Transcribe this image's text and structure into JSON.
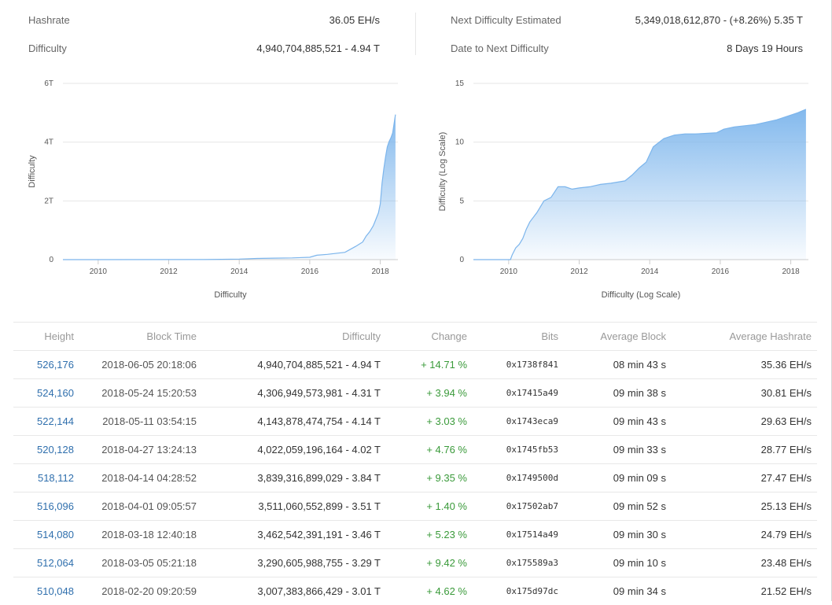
{
  "stats": {
    "hashrate_label": "Hashrate",
    "hashrate_value": "36.05 EH/s",
    "difficulty_label": "Difficulty",
    "difficulty_value": "4,940,704,885,521 - 4.94 T",
    "next_label": "Next Difficulty Estimated",
    "next_value": "5,349,018,612,870 - (+8.26%) 5.35 T",
    "date_label": "Date to Next Difficulty",
    "date_value": "8 Days 19 Hours"
  },
  "chart_data": [
    {
      "type": "area",
      "title": "",
      "xlabel": "Difficulty",
      "ylabel": "Difficulty",
      "xlim": [
        2009.0,
        2018.5
      ],
      "ylim": [
        0,
        6
      ],
      "x_ticks": [
        2010,
        2012,
        2014,
        2016,
        2018
      ],
      "y_ticks": [
        0,
        2,
        4,
        6
      ],
      "y_tick_labels": [
        "0",
        "2T",
        "4T",
        "6T"
      ],
      "grid": true,
      "color": "#7cb5ec",
      "x": [
        2009.0,
        2013.0,
        2013.5,
        2014.0,
        2014.5,
        2015.0,
        2015.5,
        2016.0,
        2016.2,
        2016.5,
        2017.0,
        2017.3,
        2017.5,
        2017.6,
        2017.7,
        2017.8,
        2017.85,
        2017.9,
        2017.95,
        2018.0,
        2018.05,
        2018.1,
        2018.15,
        2018.2,
        2018.25,
        2018.3,
        2018.35,
        2018.43
      ],
      "y": [
        0,
        0.003,
        0.01,
        0.02,
        0.04,
        0.05,
        0.06,
        0.08,
        0.15,
        0.18,
        0.25,
        0.45,
        0.6,
        0.8,
        0.95,
        1.15,
        1.3,
        1.45,
        1.6,
        1.9,
        2.6,
        3.1,
        3.5,
        3.84,
        4.02,
        4.14,
        4.31,
        4.94
      ]
    },
    {
      "type": "area",
      "title": "",
      "xlabel": "Difficulty (Log Scale)",
      "ylabel": "Difficulty (Log Scale)",
      "xlim": [
        2009.0,
        2018.5
      ],
      "ylim": [
        0,
        15
      ],
      "x_ticks": [
        2010,
        2012,
        2014,
        2016,
        2018
      ],
      "y_ticks": [
        0,
        5,
        10,
        15
      ],
      "y_tick_labels": [
        "0",
        "5",
        "10",
        "15"
      ],
      "grid": true,
      "color": "#7cb5ec",
      "x": [
        2009.0,
        2010.05,
        2010.1,
        2010.2,
        2010.3,
        2010.4,
        2010.5,
        2010.6,
        2010.7,
        2010.8,
        2010.9,
        2011.0,
        2011.2,
        2011.4,
        2011.6,
        2011.8,
        2012.0,
        2012.3,
        2012.6,
        2012.9,
        2013.1,
        2013.3,
        2013.5,
        2013.7,
        2013.9,
        2014.1,
        2014.4,
        2014.7,
        2015.0,
        2015.3,
        2015.6,
        2015.9,
        2016.1,
        2016.4,
        2016.7,
        2017.0,
        2017.3,
        2017.6,
        2017.9,
        2018.2,
        2018.43
      ],
      "y": [
        0,
        0,
        0.4,
        1.0,
        1.3,
        1.8,
        2.6,
        3.2,
        3.6,
        4.0,
        4.5,
        5.0,
        5.3,
        6.2,
        6.2,
        6.0,
        6.1,
        6.2,
        6.4,
        6.5,
        6.6,
        6.7,
        7.2,
        7.8,
        8.3,
        9.6,
        10.3,
        10.6,
        10.7,
        10.7,
        10.75,
        10.8,
        11.1,
        11.3,
        11.4,
        11.5,
        11.7,
        11.9,
        12.2,
        12.5,
        12.8
      ]
    }
  ],
  "table": {
    "headers": [
      "Height",
      "Block Time",
      "Difficulty",
      "Change",
      "Bits",
      "Average Block",
      "Average Hashrate"
    ],
    "rows": [
      [
        "526,176",
        "2018-06-05 20:18:06",
        "4,940,704,885,521 - 4.94 T",
        "+ 14.71 %",
        "0x1738f841",
        "08 min 43 s",
        "35.36 EH/s"
      ],
      [
        "524,160",
        "2018-05-24 15:20:53",
        "4,306,949,573,981 - 4.31 T",
        "+ 3.94 %",
        "0x17415a49",
        "09 min 38 s",
        "30.81 EH/s"
      ],
      [
        "522,144",
        "2018-05-11 03:54:15",
        "4,143,878,474,754 - 4.14 T",
        "+ 3.03 %",
        "0x1743eca9",
        "09 min 43 s",
        "29.63 EH/s"
      ],
      [
        "520,128",
        "2018-04-27 13:24:13",
        "4,022,059,196,164 - 4.02 T",
        "+ 4.76 %",
        "0x1745fb53",
        "09 min 33 s",
        "28.77 EH/s"
      ],
      [
        "518,112",
        "2018-04-14 04:28:52",
        "3,839,316,899,029 - 3.84 T",
        "+ 9.35 %",
        "0x1749500d",
        "09 min 09 s",
        "27.47 EH/s"
      ],
      [
        "516,096",
        "2018-04-01 09:05:57",
        "3,511,060,552,899 - 3.51 T",
        "+ 1.40 %",
        "0x17502ab7",
        "09 min 52 s",
        "25.13 EH/s"
      ],
      [
        "514,080",
        "2018-03-18 12:40:18",
        "3,462,542,391,191 - 3.46 T",
        "+ 5.23 %",
        "0x17514a49",
        "09 min 30 s",
        "24.79 EH/s"
      ],
      [
        "512,064",
        "2018-03-05 05:21:18",
        "3,290,605,988,755 - 3.29 T",
        "+ 9.42 %",
        "0x175589a3",
        "09 min 10 s",
        "23.48 EH/s"
      ],
      [
        "510,048",
        "2018-02-20 09:20:59",
        "3,007,383,866,429 - 3.01 T",
        "+ 4.62 %",
        "0x175d97dc",
        "09 min 34 s",
        "21.52 EH/s"
      ]
    ]
  }
}
